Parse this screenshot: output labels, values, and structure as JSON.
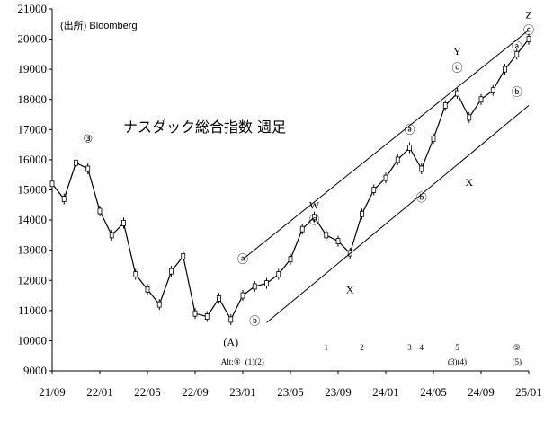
{
  "chart_data": {
    "type": "candlestick",
    "source": "(出所) Bloomberg",
    "title": "ナスダック総合指数 週足",
    "xlabel": "",
    "ylabel": "",
    "x_ticks": [
      "21/09",
      "22/01",
      "22/05",
      "22/09",
      "23/01",
      "23/05",
      "23/09",
      "24/01",
      "24/05",
      "24/09",
      "25/01"
    ],
    "y_ticks": [
      9000,
      10000,
      11000,
      12000,
      13000,
      14000,
      15000,
      16000,
      17000,
      18000,
      19000,
      20000,
      21000
    ],
    "ylim": [
      9000,
      21000
    ],
    "xlim": [
      "2021/09",
      "2025/01"
    ],
    "grid": false,
    "series": [
      {
        "x": [
          "2021/09",
          "2021/10",
          "2021/11",
          "2021/12",
          "2022/01",
          "2022/02",
          "2022/03",
          "2022/04",
          "2022/05",
          "2022/06",
          "2022/07",
          "2022/08",
          "2022/09",
          "2022/10",
          "2022/11",
          "2022/12",
          "2023/01",
          "2023/02",
          "2023/03",
          "2023/04",
          "2023/05",
          "2023/06",
          "2023/07",
          "2023/08",
          "2023/09",
          "2023/10",
          "2023/11",
          "2023/12",
          "2024/01",
          "2024/02",
          "2024/03",
          "2024/04",
          "2024/05",
          "2024/06",
          "2024/07",
          "2024/08",
          "2024/09",
          "2024/10",
          "2024/11",
          "2024/12",
          "2025/01"
        ],
        "values": [
          15200,
          14700,
          15900,
          15700,
          14300,
          13500,
          13900,
          12200,
          11700,
          11200,
          12300,
          12800,
          10900,
          10800,
          11400,
          10700,
          11500,
          11800,
          11900,
          12200,
          12700,
          13700,
          14100,
          13500,
          13300,
          12900,
          14200,
          15000,
          15400,
          16000,
          16400,
          15700,
          16700,
          17800,
          18200,
          17400,
          18000,
          18300,
          19000,
          19500,
          20000
        ]
      }
    ],
    "channel_upper": {
      "points": [
        [
          "2023/01",
          12700
        ],
        [
          "2025/01",
          20300
        ]
      ]
    },
    "channel_lower": {
      "points": [
        [
          "2023/03",
          10600
        ],
        [
          "2025/01",
          17800
        ]
      ]
    },
    "annotations": [
      {
        "text": "③",
        "x": "2021/12",
        "y": 16700
      },
      {
        "text": "(A)",
        "x": "2022/12",
        "y": 9950
      },
      {
        "text": "ⓐ",
        "x": "2023/01",
        "y": 12700
      },
      {
        "text": "ⓑ",
        "x": "2023/02",
        "y": 10650
      },
      {
        "text": "W",
        "x": "2023/07",
        "y": 14500
      },
      {
        "text": "ⓒ",
        "x": "2023/07",
        "y": 14000
      },
      {
        "text": "X",
        "x": "2023/10",
        "y": 11700
      },
      {
        "text": "ⓐ",
        "x": "2024/03",
        "y": 17000
      },
      {
        "text": "ⓑ",
        "x": "2024/04",
        "y": 14750
      },
      {
        "text": "Y",
        "x": "2024/07",
        "y": 19600
      },
      {
        "text": "ⓒ",
        "x": "2024/07",
        "y": 19050
      },
      {
        "text": "X",
        "x": "2024/08",
        "y": 15250
      },
      {
        "text": "ⓐ",
        "x": "2024/12",
        "y": 19750
      },
      {
        "text": "ⓑ",
        "x": "2024/12",
        "y": 18250
      },
      {
        "text": "Z",
        "x": "2025/01",
        "y": 20800
      },
      {
        "text": "ⓒ",
        "x": "2025/01",
        "y": 20300
      }
    ],
    "bottom_labels": [
      {
        "text": "Alt:④",
        "x": "2022/12"
      },
      {
        "text": "(1)(2)",
        "x": "2023/02"
      },
      {
        "text": "1",
        "x": "2023/08"
      },
      {
        "text": "2",
        "x": "2023/11"
      },
      {
        "text": "3",
        "x": "2024/03"
      },
      {
        "text": "4",
        "x": "2024/04"
      },
      {
        "text": "5",
        "x": "2024/07"
      },
      {
        "text": "(3)(4)",
        "x": "2024/07"
      },
      {
        "text": "⑤",
        "x": "2024/12"
      },
      {
        "text": "(5)",
        "x": "2024/12"
      }
    ]
  }
}
